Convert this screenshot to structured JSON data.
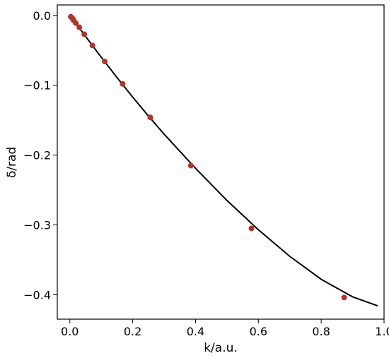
{
  "chart_data": {
    "type": "scatter",
    "xlabel": "k/a.u.",
    "ylabel": "δ/rad",
    "xlim": [
      -0.04,
      1.0
    ],
    "ylim": [
      -0.435,
      0.015
    ],
    "grid": false,
    "x_ticks": [
      0.0,
      0.2,
      0.4,
      0.6,
      0.8,
      1.0
    ],
    "x_tick_labels": [
      "0.0",
      "0.2",
      "0.4",
      "0.6",
      "0.8",
      "1.0"
    ],
    "y_ticks": [
      0.0,
      -0.1,
      -0.2,
      -0.3,
      -0.4
    ],
    "y_tick_labels": [
      "0.0",
      "−0.1",
      "−0.2",
      "−0.3",
      "−0.4"
    ],
    "series": [
      {
        "kind": "points",
        "color": "#b5322a",
        "x": [
          0.003,
          0.008,
          0.012,
          0.019,
          0.03,
          0.046,
          0.072,
          0.111,
          0.168,
          0.256,
          0.385,
          0.578,
          0.873
        ],
        "y": [
          -0.002,
          -0.004,
          -0.007,
          -0.011,
          -0.017,
          -0.027,
          -0.043,
          -0.066,
          -0.098,
          -0.146,
          -0.215,
          -0.305,
          -0.404
        ]
      },
      {
        "kind": "line",
        "color": "#000000",
        "x": [
          0.0,
          0.02,
          0.05,
          0.1,
          0.15,
          0.2,
          0.25,
          0.3,
          0.4,
          0.5,
          0.6,
          0.7,
          0.8,
          0.9,
          0.98
        ],
        "y": [
          0.0,
          -0.012,
          -0.03,
          -0.06,
          -0.089,
          -0.117,
          -0.144,
          -0.17,
          -0.219,
          -0.265,
          -0.307,
          -0.345,
          -0.378,
          -0.403,
          -0.416
        ]
      }
    ]
  }
}
